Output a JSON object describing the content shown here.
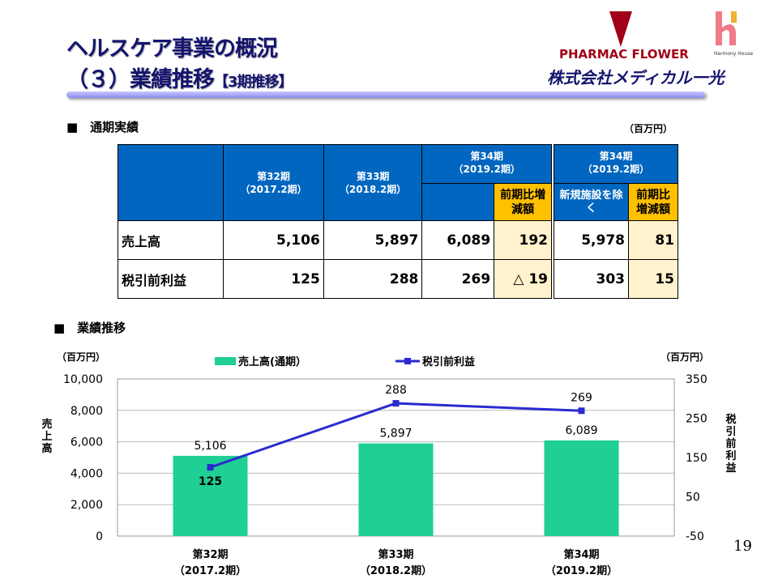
{
  "header": {
    "title_line1": "ヘルスケア事業の概況",
    "title_line2": "（３）業績推移",
    "title_suffix": "【3期推移】",
    "logo_pharmacy": "PHARMAC FLOWER",
    "logo_harmony": "Harmony House",
    "company": "株式会社メディカル一光",
    "brand_color": "#14146e"
  },
  "section1": {
    "title": "■　通期実績",
    "unit": "（百万円）"
  },
  "table": {
    "col32": [
      "第32期",
      "（2017.2期）"
    ],
    "col33": [
      "第33期",
      "（2018.2期）"
    ],
    "col34": [
      "第34期",
      "（2019.2期）"
    ],
    "diff": "前期比増減額",
    "excl": "新規施設を除く",
    "col34b": [
      "第34期",
      "（2019.2期）"
    ],
    "diff2": "前期比増減額",
    "rows": [
      {
        "label": "売上高",
        "v32": "5,106",
        "v33": "5,897",
        "v34": "6,089",
        "diff": "192",
        "excl": "5,978",
        "diff2": "81"
      },
      {
        "label": "税引前利益",
        "v32": "125",
        "v33": "288",
        "v34": "269",
        "diff": "△ 19",
        "excl": "303",
        "diff2": "15"
      }
    ]
  },
  "section2": {
    "title": "■　業績推移",
    "unit_left": "（百万円）",
    "unit_right": "（百万円）"
  },
  "chart_data": {
    "type": "bar+line",
    "categories": [
      [
        "第32期",
        "（2017.2期）"
      ],
      [
        "第33期",
        "（2018.2期）"
      ],
      [
        "第34期",
        "（2019.2期）"
      ]
    ],
    "series": [
      {
        "name": "売上高(通期）",
        "type": "bar",
        "axis": "left",
        "values": [
          5106,
          5897,
          6089
        ],
        "labels": [
          "5,106",
          "5,897",
          "6,089"
        ],
        "color": "#1fcf94"
      },
      {
        "name": "税引前利益",
        "type": "line",
        "axis": "right",
        "values": [
          125,
          288,
          269
        ],
        "labels": [
          "125",
          "288",
          "269"
        ],
        "color": "#2a2ad0"
      }
    ],
    "ylabel_left": "売上高",
    "ylabel_right": "税引前利益",
    "ylim_left": [
      0,
      10000
    ],
    "yticks_left": [
      "0",
      "2,000",
      "4,000",
      "6,000",
      "8,000",
      "10,000"
    ],
    "ylim_right": [
      -50,
      350
    ],
    "yticks_right": [
      "-50",
      "50",
      "150",
      "250",
      "350"
    ],
    "legend": "top",
    "grid": true
  },
  "page_number": "19"
}
